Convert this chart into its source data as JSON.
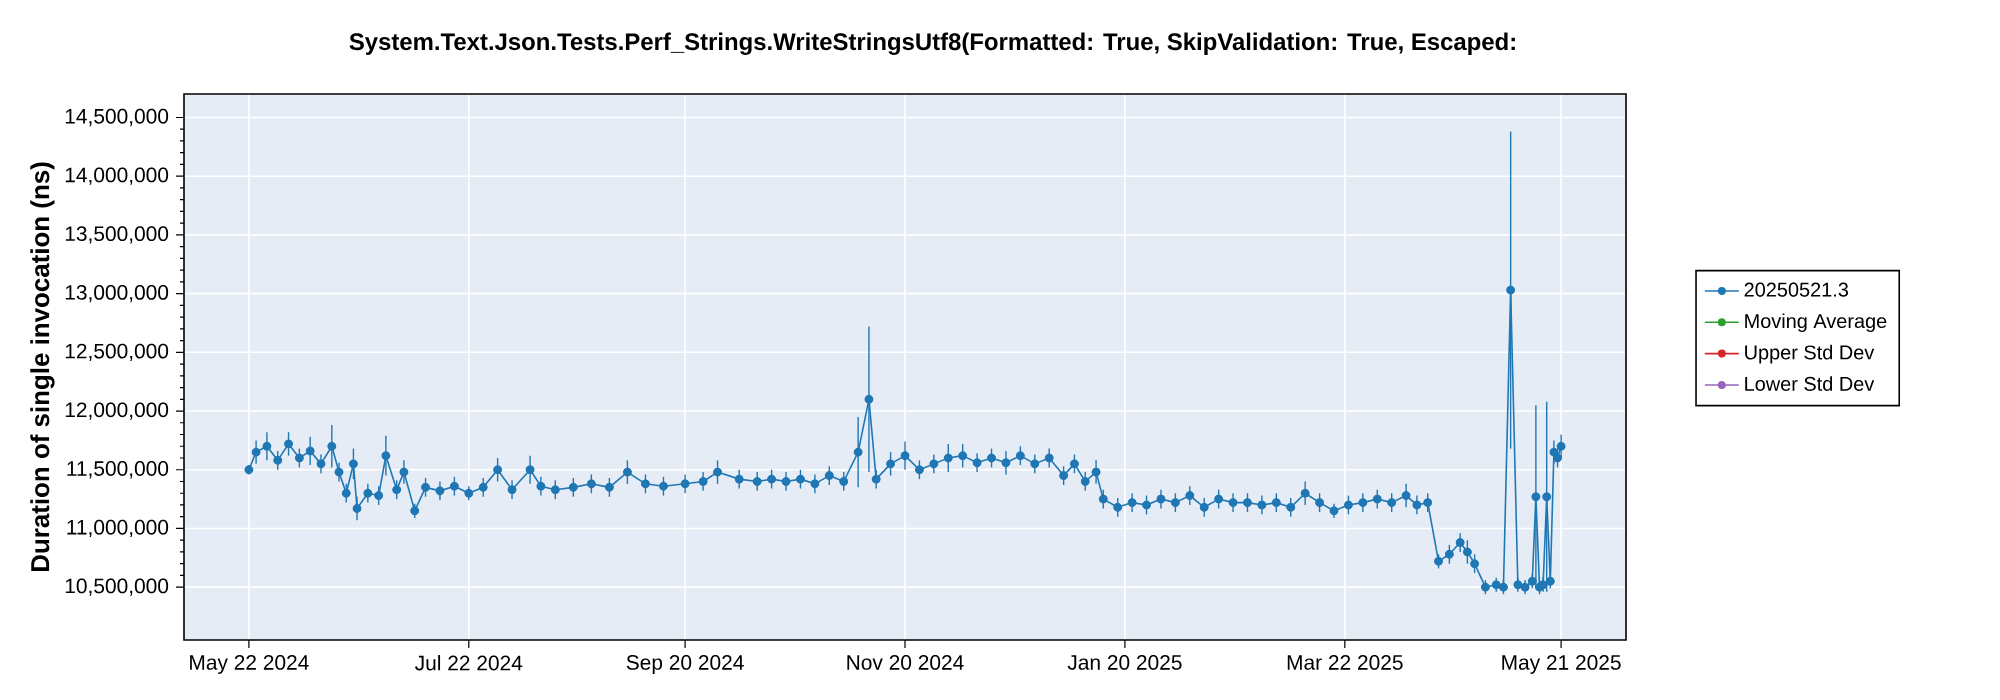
{
  "chart_data": {
    "type": "line",
    "title": "System.Text.Json.Tests.Perf_Strings.WriteStringsUtf8(Formatted: True, SkipValidation: True, Escaped:",
    "ylabel": "Duration of single invocation (ns)",
    "xlim": [
      "2024-05-04",
      "2025-06-08"
    ],
    "xticks": [
      {
        "value": "2024-05-22",
        "label": "May 22 2024"
      },
      {
        "value": "2024-07-22",
        "label": "Jul 22 2024"
      },
      {
        "value": "2024-09-20",
        "label": "Sep 20 2024"
      },
      {
        "value": "2024-11-20",
        "label": "Nov 20 2024"
      },
      {
        "value": "2025-01-20",
        "label": "Jan 20 2025"
      },
      {
        "value": "2025-03-22",
        "label": "Mar 22 2025"
      },
      {
        "value": "2025-05-21",
        "label": "May 21 2025"
      }
    ],
    "ylim": [
      10050000,
      14700000
    ],
    "yticks": [
      {
        "value": 10500000,
        "label": "10,500,000"
      },
      {
        "value": 11000000,
        "label": "11,000,000"
      },
      {
        "value": 11500000,
        "label": "11,500,000"
      },
      {
        "value": 12000000,
        "label": "12,000,000"
      },
      {
        "value": 12500000,
        "label": "12,500,000"
      },
      {
        "value": 13000000,
        "label": "13,000,000"
      },
      {
        "value": 13500000,
        "label": "13,500,000"
      },
      {
        "value": 14000000,
        "label": "14,000,000"
      },
      {
        "value": 14500000,
        "label": "14,500,000"
      }
    ],
    "grid": true,
    "legend": "right",
    "marker": "circle",
    "line_style": "solid",
    "series": [
      {
        "name": "20250521.3",
        "color": "#1f77b4",
        "x": [
          "2024-05-22",
          "2024-05-24",
          "2024-05-27",
          "2024-05-30",
          "2024-06-02",
          "2024-06-05",
          "2024-06-08",
          "2024-06-11",
          "2024-06-14",
          "2024-06-16",
          "2024-06-18",
          "2024-06-20",
          "2024-06-21",
          "2024-06-24",
          "2024-06-27",
          "2024-06-29",
          "2024-07-02",
          "2024-07-04",
          "2024-07-07",
          "2024-07-10",
          "2024-07-14",
          "2024-07-18",
          "2024-07-22",
          "2024-07-26",
          "2024-07-30",
          "2024-08-03",
          "2024-08-08",
          "2024-08-11",
          "2024-08-15",
          "2024-08-20",
          "2024-08-25",
          "2024-08-30",
          "2024-09-04",
          "2024-09-09",
          "2024-09-14",
          "2024-09-20",
          "2024-09-25",
          "2024-09-29",
          "2024-10-05",
          "2024-10-10",
          "2024-10-14",
          "2024-10-18",
          "2024-10-22",
          "2024-10-26",
          "2024-10-30",
          "2024-11-03",
          "2024-11-07",
          "2024-11-10",
          "2024-11-12",
          "2024-11-16",
          "2024-11-20",
          "2024-11-24",
          "2024-11-28",
          "2024-12-02",
          "2024-12-06",
          "2024-12-10",
          "2024-12-14",
          "2024-12-18",
          "2024-12-22",
          "2024-12-26",
          "2024-12-30",
          "2025-01-03",
          "2025-01-06",
          "2025-01-09",
          "2025-01-12",
          "2025-01-14",
          "2025-01-18",
          "2025-01-22",
          "2025-01-26",
          "2025-01-30",
          "2025-02-03",
          "2025-02-07",
          "2025-02-11",
          "2025-02-15",
          "2025-02-19",
          "2025-02-23",
          "2025-02-27",
          "2025-03-03",
          "2025-03-07",
          "2025-03-11",
          "2025-03-15",
          "2025-03-19",
          "2025-03-23",
          "2025-03-27",
          "2025-03-31",
          "2025-04-04",
          "2025-04-08",
          "2025-04-11",
          "2025-04-14",
          "2025-04-17",
          "2025-04-20",
          "2025-04-23",
          "2025-04-25",
          "2025-04-27",
          "2025-04-30",
          "2025-05-03",
          "2025-05-05",
          "2025-05-07",
          "2025-05-09",
          "2025-05-11",
          "2025-05-13",
          "2025-05-14",
          "2025-05-15",
          "2025-05-16",
          "2025-05-17",
          "2025-05-18",
          "2025-05-19",
          "2025-05-20",
          "2025-05-21"
        ],
        "values": [
          11500000,
          11650000,
          11700000,
          11580000,
          11720000,
          11600000,
          11660000,
          11550000,
          11700000,
          11480000,
          11300000,
          11550000,
          11170000,
          11300000,
          11280000,
          11620000,
          11330000,
          11480000,
          11150000,
          11350000,
          11320000,
          11360000,
          11300000,
          11350000,
          11500000,
          11330000,
          11500000,
          11360000,
          11330000,
          11350000,
          11380000,
          11350000,
          11480000,
          11380000,
          11360000,
          11380000,
          11400000,
          11480000,
          11420000,
          11400000,
          11420000,
          11400000,
          11420000,
          11380000,
          11450000,
          11400000,
          11650000,
          12100000,
          11420000,
          11550000,
          11620000,
          11500000,
          11550000,
          11600000,
          11620000,
          11560000,
          11600000,
          11560000,
          11620000,
          11550000,
          11600000,
          11450000,
          11550000,
          11400000,
          11480000,
          11250000,
          11180000,
          11220000,
          11200000,
          11250000,
          11220000,
          11280000,
          11180000,
          11250000,
          11220000,
          11220000,
          11200000,
          11220000,
          11180000,
          11300000,
          11220000,
          11150000,
          11200000,
          11220000,
          11250000,
          11220000,
          11280000,
          11200000,
          11220000,
          10720000,
          10780000,
          10880000,
          10800000,
          10700000,
          10500000,
          10520000,
          10500000,
          13030000,
          10520000,
          10500000,
          10550000,
          11270000,
          10500000,
          10520000,
          11270000,
          10550000,
          11650000,
          11600000,
          11700000
        ],
        "errors": [
          40000,
          100000,
          120000,
          80000,
          100000,
          80000,
          120000,
          80000,
          180000,
          80000,
          80000,
          130000,
          100000,
          80000,
          80000,
          170000,
          80000,
          100000,
          60000,
          80000,
          80000,
          80000,
          60000,
          80000,
          100000,
          80000,
          120000,
          80000,
          80000,
          80000,
          80000,
          80000,
          100000,
          80000,
          80000,
          80000,
          80000,
          100000,
          80000,
          80000,
          80000,
          80000,
          80000,
          80000,
          80000,
          80000,
          300000,
          620000,
          80000,
          100000,
          120000,
          80000,
          80000,
          120000,
          100000,
          80000,
          80000,
          100000,
          80000,
          80000,
          80000,
          80000,
          80000,
          80000,
          100000,
          80000,
          80000,
          80000,
          80000,
          80000,
          80000,
          80000,
          80000,
          80000,
          80000,
          80000,
          80000,
          80000,
          80000,
          100000,
          80000,
          60000,
          80000,
          80000,
          80000,
          80000,
          100000,
          80000,
          80000,
          60000,
          80000,
          80000,
          100000,
          80000,
          60000,
          60000,
          60000,
          1350000,
          60000,
          60000,
          60000,
          780000,
          60000,
          60000,
          810000,
          60000,
          100000,
          80000,
          100000
        ]
      },
      {
        "name": "Moving Average",
        "color": "#2ca02c"
      },
      {
        "name": "Upper Std Dev",
        "color": "#d62728"
      },
      {
        "name": "Lower Std Dev",
        "color": "#9467bd"
      }
    ]
  }
}
